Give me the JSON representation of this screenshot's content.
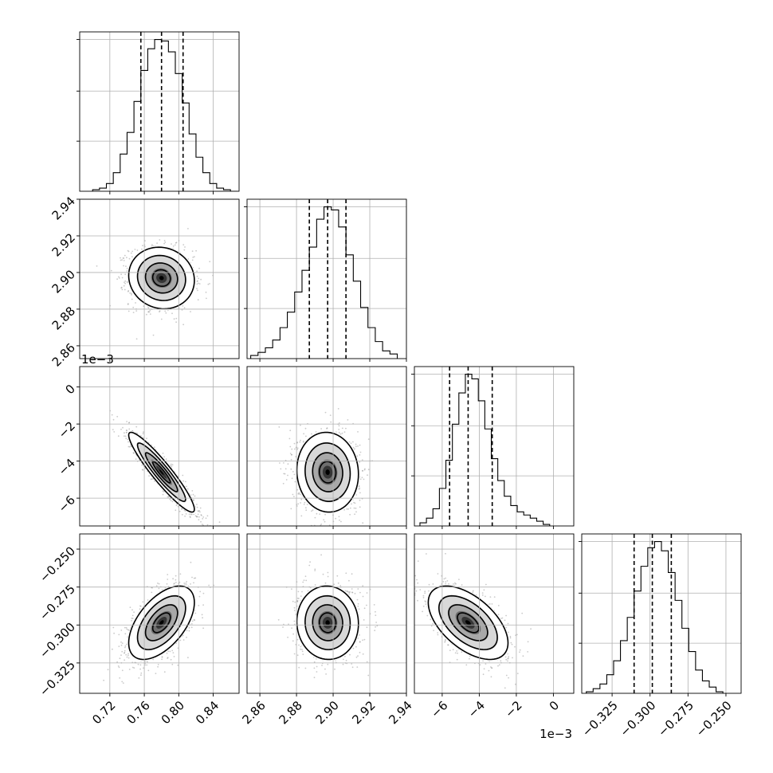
{
  "chart_data": {
    "type": "corner",
    "title": "",
    "grid": true,
    "parameters": [
      {
        "index": 0,
        "xlim": [
          0.685,
          0.87
        ],
        "ticks": [
          0.72,
          0.76,
          0.8,
          0.84
        ],
        "tick_labels": [
          "0.72",
          "0.76",
          "0.80",
          "0.84"
        ],
        "offset_label": ""
      },
      {
        "index": 1,
        "xlim": [
          2.853,
          2.94
        ],
        "ticks": [
          2.86,
          2.88,
          2.9,
          2.92,
          2.94
        ],
        "tick_labels": [
          "2.86",
          "2.88",
          "2.90",
          "2.92",
          "2.94"
        ],
        "offset_label": ""
      },
      {
        "index": 2,
        "xlim": [
          -7.5,
          1.1
        ],
        "ticks": [
          -6,
          -4,
          -2,
          0
        ],
        "tick_labels": [
          "−6",
          "−4",
          "−2",
          "0"
        ],
        "offset_label": "1e−3"
      },
      {
        "index": 3,
        "xlim": [
          -0.345,
          -0.24
        ],
        "ticks": [
          -0.325,
          -0.3,
          -0.275,
          -0.25
        ],
        "tick_labels": [
          "−0.325",
          "−0.300",
          "−0.275",
          "−0.250"
        ],
        "offset_label": ""
      }
    ],
    "histograms": [
      {
        "param": 0,
        "median": 0.78,
        "q16": 0.756,
        "q84": 0.805,
        "edges": [
          0.7,
          0.708,
          0.716,
          0.724,
          0.732,
          0.74,
          0.748,
          0.756,
          0.764,
          0.772,
          0.78,
          0.788,
          0.796,
          0.804,
          0.812,
          0.82,
          0.828,
          0.836,
          0.844,
          0.852,
          0.86,
          0.868
        ],
        "counts": [
          1,
          2,
          5,
          12,
          24,
          38,
          58,
          78,
          92,
          98,
          97,
          90,
          76,
          57,
          37,
          22,
          12,
          5,
          2,
          1,
          0
        ]
      },
      {
        "param": 1,
        "median": 2.897,
        "q16": 2.887,
        "q84": 2.907,
        "edges": [
          2.855,
          2.859,
          2.863,
          2.867,
          2.871,
          2.875,
          2.879,
          2.883,
          2.887,
          2.891,
          2.895,
          2.899,
          2.903,
          2.907,
          2.911,
          2.915,
          2.919,
          2.923,
          2.927,
          2.931,
          2.935
        ],
        "counts": [
          2,
          4,
          7,
          12,
          20,
          30,
          43,
          57,
          72,
          90,
          98,
          96,
          85,
          67,
          50,
          33,
          20,
          11,
          5,
          3
        ]
      },
      {
        "param": 2,
        "median": -4.6,
        "q16": -5.6,
        "q84": -3.3,
        "edges": [
          -7.2,
          -6.85,
          -6.5,
          -6.15,
          -5.8,
          -5.45,
          -5.1,
          -4.75,
          -4.4,
          -4.05,
          -3.7,
          -3.35,
          -3.0,
          -2.65,
          -2.3,
          -1.95,
          -1.6,
          -1.25,
          -0.9,
          -0.55,
          -0.2
        ],
        "counts": [
          2,
          5,
          11,
          24,
          42,
          65,
          85,
          97,
          94,
          80,
          62,
          43,
          29,
          19,
          13,
          9,
          7,
          5,
          3,
          1
        ]
      },
      {
        "param": 3,
        "median": -0.2985,
        "q16": -0.3105,
        "q84": -0.286,
        "edges": [
          -0.342,
          -0.3375,
          -0.333,
          -0.3285,
          -0.324,
          -0.3195,
          -0.315,
          -0.3105,
          -0.306,
          -0.3015,
          -0.297,
          -0.2925,
          -0.288,
          -0.2835,
          -0.279,
          -0.2745,
          -0.27,
          -0.2655,
          -0.261,
          -0.2565,
          -0.252
        ],
        "counts": [
          1,
          3,
          6,
          12,
          21,
          34,
          49,
          66,
          82,
          94,
          98,
          92,
          78,
          60,
          42,
          27,
          15,
          8,
          4,
          1
        ]
      }
    ],
    "pairs": [
      {
        "x": 0,
        "y": 1,
        "center": [
          0.78,
          2.897
        ],
        "sigma": [
          0.0186,
          0.0082
        ],
        "rho": -0.08
      },
      {
        "x": 0,
        "y": 2,
        "center": [
          0.78,
          -4.6
        ],
        "sigma": [
          0.0186,
          1.05
        ],
        "rho": -0.93
      },
      {
        "x": 0,
        "y": 3,
        "center": [
          0.78,
          -0.2985
        ],
        "sigma": [
          0.0186,
          0.0118
        ],
        "rho": 0.55
      },
      {
        "x": 1,
        "y": 2,
        "center": [
          2.897,
          -4.6
        ],
        "sigma": [
          0.0082,
          1.05
        ],
        "rho": -0.05
      },
      {
        "x": 1,
        "y": 3,
        "center": [
          2.897,
          -0.2985
        ],
        "sigma": [
          0.0082,
          0.0118
        ],
        "rho": -0.03
      },
      {
        "x": 2,
        "y": 3,
        "center": [
          -4.6,
          -0.2985
        ],
        "sigma": [
          1.05,
          0.0118
        ],
        "rho": -0.55
      }
    ]
  }
}
